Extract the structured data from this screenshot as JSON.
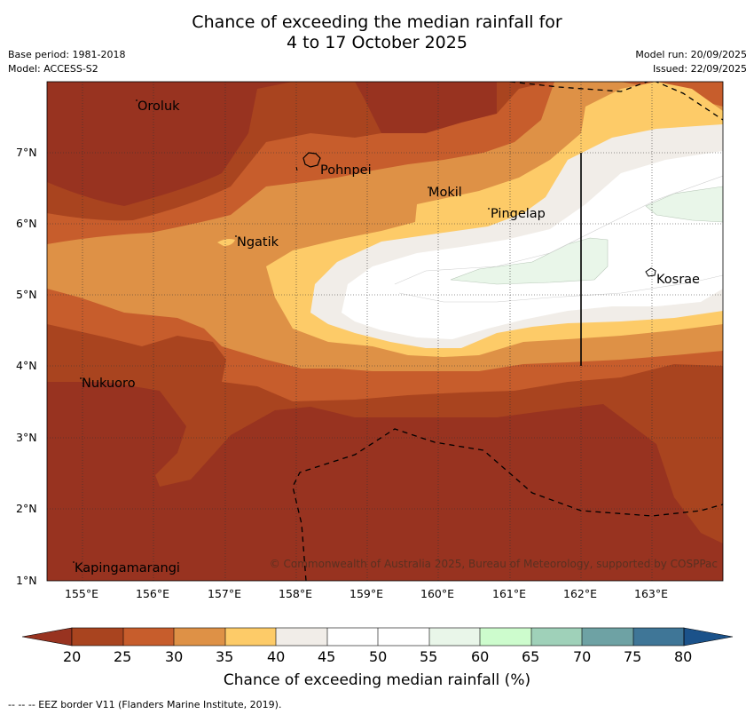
{
  "title": {
    "line1": "Chance of exceeding the median rainfall for",
    "line2": "4 to 17 October 2025"
  },
  "meta": {
    "base_period": "Base period: 1981-2018",
    "model": "Model: ACCESS-S2",
    "model_run": "Model run: 20/09/2025",
    "issued": "Issued: 22/09/2025"
  },
  "axes": {
    "x_ticks": [
      "155°E",
      "156°E",
      "157°E",
      "158°E",
      "159°E",
      "160°E",
      "161°E",
      "162°E",
      "163°E"
    ],
    "y_ticks": [
      "7°N",
      "6°N",
      "5°N",
      "4°N",
      "3°N",
      "2°N",
      "1°N"
    ]
  },
  "places": [
    {
      "name": "Oroluk",
      "lon": 155.75,
      "lat": 7.7
    },
    {
      "name": "Pohnpei",
      "lon": 158.25,
      "lat": 6.9
    },
    {
      "name": "Mokil",
      "lon": 159.8,
      "lat": 6.7
    },
    {
      "name": "Pingelap",
      "lon": 160.7,
      "lat": 6.2
    },
    {
      "name": "Ngatik",
      "lon": 157.1,
      "lat": 5.8
    },
    {
      "name": "Kosrae",
      "lon": 163.0,
      "lat": 5.3
    },
    {
      "name": "Nukuoro",
      "lon": 154.95,
      "lat": 3.85
    },
    {
      "name": "Kapingamarangi",
      "lon": 154.8,
      "lat": 1.1
    }
  ],
  "copyright": "© Commonwealth of Australia 2025, Bureau of Meteorology, supported by COSPPac",
  "colorbar": {
    "title": "Chance of exceeding median rainfall (%)",
    "labels": [
      "20",
      "25",
      "30",
      "35",
      "40",
      "45",
      "50",
      "55",
      "60",
      "65",
      "70",
      "75",
      "80"
    ],
    "colors": [
      "#a9441f",
      "#c75d2c",
      "#de9146",
      "#fdcb68",
      "#f1ede8",
      "#ffffff",
      "#ffffff",
      "#e9f6e9",
      "#cdfccd",
      "#9fd1b9",
      "#6ea2a4",
      "#3f7697"
    ],
    "under_color": "#983320",
    "over_color": "#1b528a"
  },
  "footnote": "--  --  -- EEZ border V11 (Flanders Marine Institute, 2019)."
}
